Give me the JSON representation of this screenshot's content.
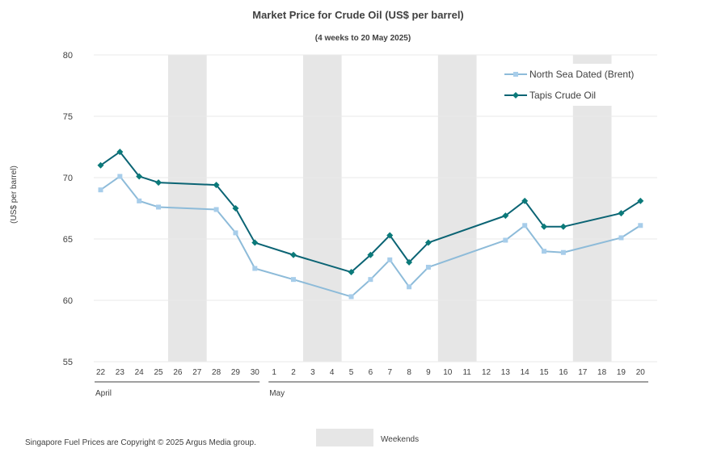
{
  "chart_data": {
    "type": "line",
    "title": "Market Price for Crude Oil (US$ per barrel)",
    "subtitle": "(4 weeks to 20 May 2025)",
    "ylabel": "(US$ per barrel)",
    "xlabel": "",
    "ylim": [
      55,
      80
    ],
    "yticks": [
      55,
      60,
      65,
      70,
      75,
      80
    ],
    "grid": true,
    "legend_position": "top-right",
    "categories": [
      "22",
      "23",
      "24",
      "25",
      "26",
      "27",
      "28",
      "29",
      "30",
      "1",
      "2",
      "3",
      "4",
      "5",
      "6",
      "7",
      "8",
      "9",
      "10",
      "11",
      "12",
      "13",
      "14",
      "15",
      "16",
      "17",
      "18",
      "19",
      "20"
    ],
    "month_groups": [
      {
        "label": "April",
        "start": 0,
        "end": 8
      },
      {
        "label": "May",
        "start": 9,
        "end": 28
      }
    ],
    "weekend_spans": [
      [
        4,
        5
      ],
      [
        11,
        12
      ],
      [
        18,
        19
      ],
      [
        25,
        26
      ]
    ],
    "series": [
      {
        "name": "North Sea Dated (Brent)",
        "color": "#8dbbd9",
        "marker": "square",
        "points": [
          [
            0,
            69.0
          ],
          [
            1,
            70.1
          ],
          [
            2,
            68.1
          ],
          [
            3,
            67.6
          ],
          [
            6,
            67.4
          ],
          [
            7,
            65.5
          ],
          [
            8,
            62.6
          ],
          [
            10,
            61.7
          ],
          [
            13,
            60.3
          ],
          [
            14,
            61.7
          ],
          [
            15,
            63.3
          ],
          [
            16,
            61.1
          ],
          [
            17,
            62.7
          ],
          [
            21,
            64.9
          ],
          [
            22,
            66.1
          ],
          [
            23,
            64.0
          ],
          [
            24,
            63.9
          ],
          [
            27,
            65.1
          ],
          [
            28,
            66.1
          ]
        ]
      },
      {
        "name": "Tapis Crude Oil",
        "color": "#0b6474",
        "marker": "diamond",
        "points": [
          [
            0,
            71.0
          ],
          [
            1,
            72.1
          ],
          [
            2,
            70.1
          ],
          [
            3,
            69.6
          ],
          [
            6,
            69.4
          ],
          [
            7,
            67.5
          ],
          [
            8,
            64.7
          ],
          [
            10,
            63.7
          ],
          [
            13,
            62.3
          ],
          [
            14,
            63.7
          ],
          [
            15,
            65.3
          ],
          [
            16,
            63.1
          ],
          [
            17,
            64.7
          ],
          [
            21,
            66.9
          ],
          [
            22,
            68.1
          ],
          [
            23,
            66.0
          ],
          [
            24,
            66.0
          ],
          [
            27,
            67.1
          ],
          [
            28,
            68.1
          ]
        ]
      }
    ],
    "weekend_legend_label": "Weekends",
    "weekend_color": "#e6e6e6"
  },
  "footer": {
    "copyright": "Singapore Fuel Prices are Copyright © 2025 Argus Media group."
  }
}
